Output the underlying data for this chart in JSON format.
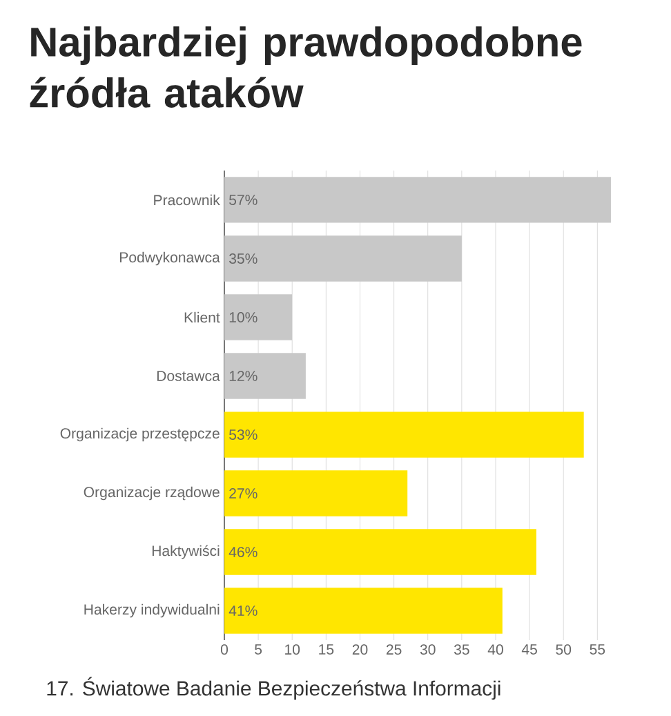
{
  "chart_data": {
    "type": "bar",
    "orientation": "horizontal",
    "title": "Najbardziej prawdopodobne źródła ataków",
    "categories": [
      "Pracownik",
      "Podwykonawca",
      "Klient",
      "Dostawca",
      "Organizacje przestępcze",
      "Organizacje rządowe",
      "Haktywiści",
      "Hakerzy indywidualni"
    ],
    "values": [
      57,
      35,
      10,
      12,
      53,
      27,
      46,
      41
    ],
    "value_labels": [
      "57%",
      "35%",
      "10%",
      "12%",
      "53%",
      "27%",
      "46%",
      "41%"
    ],
    "colors": [
      "#c8c8c8",
      "#c8c8c8",
      "#c8c8c8",
      "#c8c8c8",
      "#ffe600",
      "#ffe600",
      "#ffe600",
      "#ffe600"
    ],
    "xlim": [
      0,
      57
    ],
    "xticks": [
      0,
      5,
      10,
      15,
      20,
      25,
      30,
      35,
      40,
      45,
      50,
      55
    ],
    "grid": "x",
    "annotations": [
      "17. Światowe Badanie Bezpieczeństwa Informacji"
    ]
  }
}
